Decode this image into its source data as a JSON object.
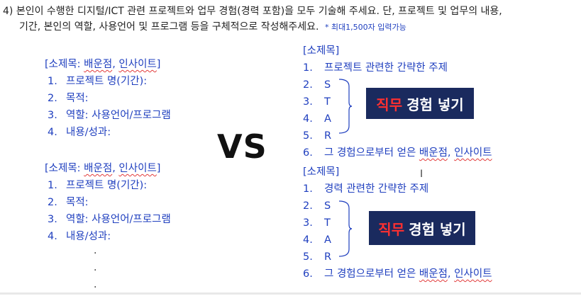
{
  "question": {
    "line1": "4) 본인이 수행한 디지털/ICT 관련 프로젝트와 업무 경험(경력 포함)을 모두 기술해 주세요.  단, 프로젝트 및 업무의 내용,",
    "line2": "기간, 본인의 역할, 사용언어 및 프로그램 등을 구체적으로 작성해주세요.",
    "note": "* 최대1,500자 입력가능"
  },
  "left_block_1": {
    "title_prefix": "[소제목: ",
    "title_mid": "배운점",
    "title_sep": ", ",
    "title_end": "인사이트",
    "title_close": "]",
    "items": [
      {
        "num": "1.",
        "text": "프로젝트 명(기간):"
      },
      {
        "num": "2.",
        "text": "목적:"
      },
      {
        "num": "3.",
        "text": "역할: 사용언어/프로그램"
      },
      {
        "num": "4.",
        "text": "내용/성과:"
      }
    ]
  },
  "left_block_2": {
    "title_prefix": "[소제목: ",
    "title_mid": "배운점",
    "title_sep": ", ",
    "title_end": "인사이트",
    "title_close": "]",
    "items": [
      {
        "num": "1.",
        "text": "프로젝트 명(기간):"
      },
      {
        "num": "2.",
        "text": "목적:"
      },
      {
        "num": "3.",
        "text": "역할: 사용언어/프로그램"
      },
      {
        "num": "4.",
        "text": "내용/성과:"
      }
    ],
    "dots": [
      "·",
      "·",
      "·"
    ]
  },
  "vs": "VS",
  "right_block_1": {
    "title": "[소제목]",
    "items": [
      {
        "num": "1.",
        "text": "프로젝트 관련한 간략한 주제"
      },
      {
        "num": "2.",
        "text": "S"
      },
      {
        "num": "3.",
        "text": "T"
      },
      {
        "num": "4.",
        "text": "A"
      },
      {
        "num": "5.",
        "text": "R"
      },
      {
        "num": "6.",
        "text_a": "그 경험으로부터 얻은 ",
        "text_b": "배운점",
        "text_c": ", ",
        "text_d": "인사이트"
      }
    ],
    "badge_red": "직무",
    "badge_white": "경험 넣기"
  },
  "right_block_2": {
    "title": "[소제목]",
    "items": [
      {
        "num": "1.",
        "text": "경력 관련한 간략한 주제"
      },
      {
        "num": "2.",
        "text": "S"
      },
      {
        "num": "3.",
        "text": "T"
      },
      {
        "num": "4.",
        "text": "A"
      },
      {
        "num": "5.",
        "text": "R"
      },
      {
        "num": "6.",
        "text_a": "그 경험으로부터 얻은 ",
        "text_b": "배운점",
        "text_c": ", ",
        "text_d": "인사이트"
      }
    ],
    "badge_red": "직무",
    "badge_white": "경험 넣기"
  },
  "colors": {
    "text_blue": "#1f3fbf",
    "badge_bg": "#1a2a5e",
    "badge_red": "#ff3030"
  },
  "icons": {
    "cursor": "text-cursor-icon"
  }
}
